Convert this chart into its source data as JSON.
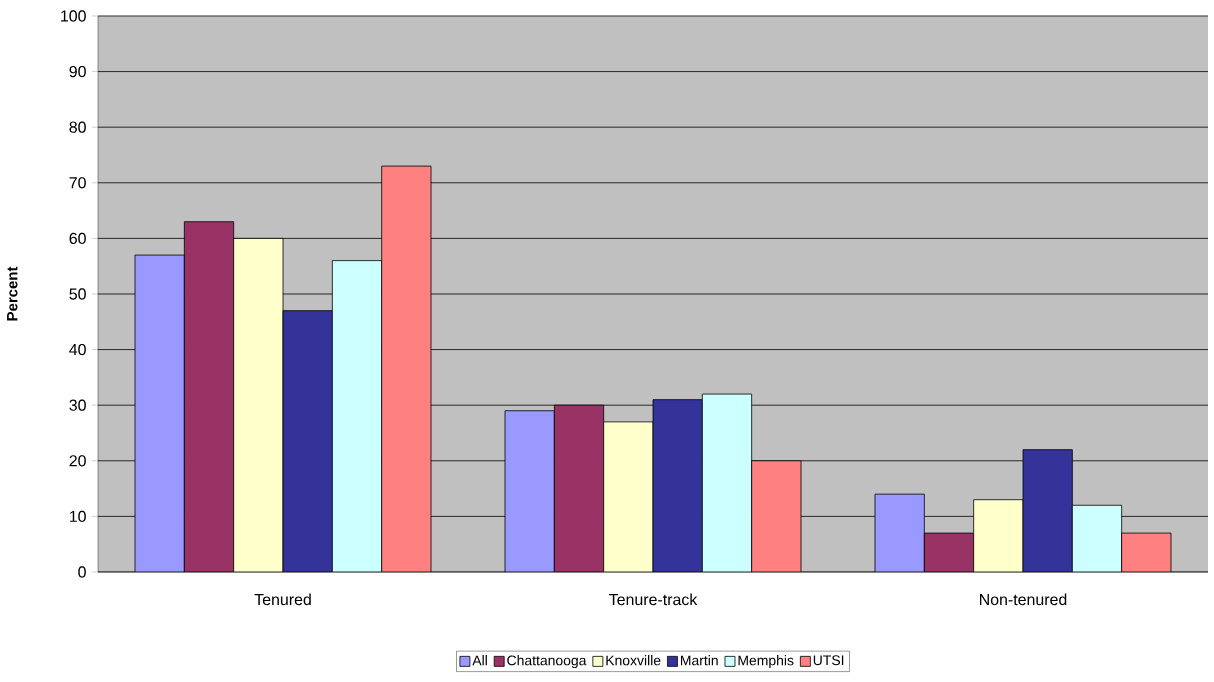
{
  "chart_data": {
    "type": "bar",
    "ylabel": "Percent",
    "categories": [
      "Tenured",
      "Tenure-track",
      "Non-tenured"
    ],
    "series": [
      {
        "name": "All",
        "color": "#9999ff",
        "values": [
          57,
          29,
          14
        ]
      },
      {
        "name": "Chattanooga",
        "color": "#993366",
        "values": [
          63,
          30,
          7
        ]
      },
      {
        "name": "Knoxville",
        "color": "#ffffcc",
        "values": [
          60,
          27,
          13
        ]
      },
      {
        "name": "Martin",
        "color": "#333399",
        "values": [
          47,
          31,
          22
        ]
      },
      {
        "name": "Memphis",
        "color": "#ccffff",
        "values": [
          56,
          32,
          12
        ]
      },
      {
        "name": "UTSI",
        "color": "#ff8080",
        "values": [
          73,
          20,
          7
        ]
      }
    ],
    "ylim": [
      0,
      100
    ],
    "yticks": [
      0,
      10,
      20,
      30,
      40,
      50,
      60,
      70,
      80,
      90,
      100
    ],
    "grid": "y",
    "legend": "bottom"
  }
}
